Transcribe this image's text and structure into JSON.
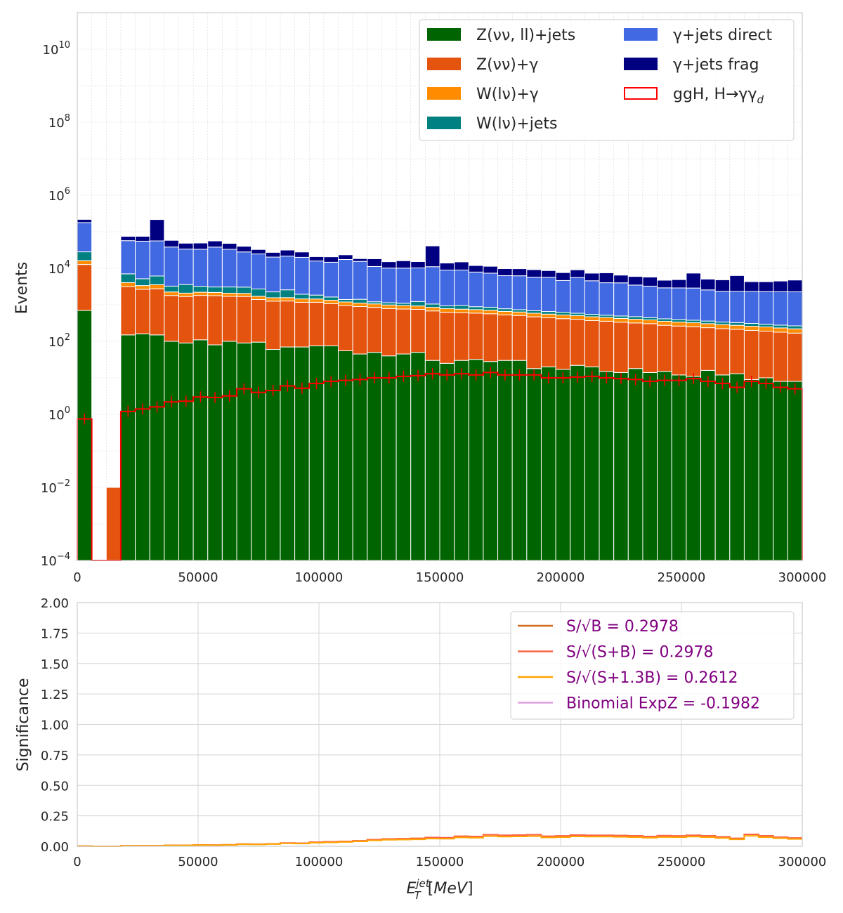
{
  "chart_data": [
    {
      "type": "bar",
      "stacked": true,
      "xlabel": "E_T^jet [MeV]",
      "ylabel": "Events",
      "yscale": "log",
      "xlim": [
        0,
        300000
      ],
      "ylim": [
        0.0001,
        100000000000
      ],
      "grid": true,
      "legend": "top-right",
      "xticks": [
        "0",
        "50000",
        "100000",
        "150000",
        "200000",
        "250000",
        "300000"
      ],
      "yticks": [
        {
          "v": 0.0001,
          "base": "10",
          "exp": "−4"
        },
        {
          "v": 0.01,
          "base": "10",
          "exp": "−2"
        },
        {
          "v": 1,
          "base": "10",
          "exp": "0"
        },
        {
          "v": 100,
          "base": "10",
          "exp": "2"
        },
        {
          "v": 10000,
          "base": "10",
          "exp": "4"
        },
        {
          "v": 1000000,
          "base": "10",
          "exp": "6"
        },
        {
          "v": 100000000,
          "base": "10",
          "exp": "8"
        },
        {
          "v": 10000000000,
          "base": "10",
          "exp": "10"
        }
      ],
      "bin_width": 6000,
      "x": [
        3000,
        9000,
        15000,
        21000,
        27000,
        33000,
        39000,
        45000,
        51000,
        57000,
        63000,
        69000,
        75000,
        81000,
        87000,
        93000,
        99000,
        105000,
        111000,
        117000,
        123000,
        129000,
        135000,
        141000,
        147000,
        153000,
        159000,
        165000,
        171000,
        177000,
        183000,
        189000,
        195000,
        201000,
        207000,
        213000,
        219000,
        225000,
        231000,
        237000,
        243000,
        249000,
        255000,
        261000,
        267000,
        273000,
        279000,
        285000,
        291000,
        297000
      ],
      "series": [
        {
          "name": "Z(νν, ll)+jets",
          "color": "#006400",
          "values": [
            700,
            0,
            0,
            150,
            160,
            150,
            100,
            90,
            110,
            80,
            100,
            90,
            95,
            60,
            70,
            70,
            75,
            75,
            55,
            45,
            50,
            40,
            45,
            50,
            30,
            25,
            30,
            32,
            28,
            30,
            30,
            18,
            20,
            17,
            22,
            20,
            15,
            14,
            18,
            14,
            15,
            12,
            11,
            16,
            12,
            13,
            9,
            10,
            8,
            8
          ]
        },
        {
          "name": "Z(νν)+γ",
          "color": "#e4540f",
          "values": [
            12000,
            0,
            0.01,
            3000,
            2500,
            2600,
            1700,
            1600,
            1700,
            1700,
            1600,
            1600,
            1300,
            1200,
            1200,
            1100,
            1100,
            1000,
            900,
            850,
            800,
            750,
            720,
            700,
            650,
            600,
            580,
            560,
            540,
            500,
            480,
            450,
            420,
            400,
            380,
            350,
            340,
            320,
            300,
            290,
            260,
            250,
            240,
            220,
            210,
            200,
            190,
            180,
            170,
            160
          ]
        },
        {
          "name": "W(lν)+γ",
          "color": "#ff8c00",
          "values": [
            3500,
            0,
            0,
            900,
            700,
            800,
            450,
            400,
            400,
            400,
            380,
            360,
            320,
            300,
            300,
            280,
            270,
            260,
            240,
            220,
            210,
            200,
            190,
            180,
            170,
            160,
            150,
            145,
            140,
            130,
            125,
            120,
            115,
            110,
            105,
            100,
            95,
            90,
            85,
            82,
            78,
            75,
            72,
            68,
            65,
            62,
            60,
            58,
            55,
            52
          ]
        },
        {
          "name": "W(lν)+jets",
          "color": "#008080",
          "values": [
            12000,
            0,
            0,
            3000,
            1800,
            2600,
            1000,
            1500,
            1000,
            900,
            1000,
            1000,
            1000,
            700,
            1000,
            500,
            400,
            300,
            200,
            300,
            150,
            150,
            150,
            300,
            200,
            150,
            200,
            150,
            150,
            120,
            100,
            100,
            100,
            100,
            80,
            80,
            70,
            70,
            70,
            60,
            60,
            60,
            55,
            55,
            50,
            50,
            50,
            45,
            45,
            45
          ]
        },
        {
          "name": "γ+jets direct",
          "color": "#4169e1",
          "values": [
            150000,
            0,
            0,
            50000,
            50000,
            50000,
            35000,
            30000,
            30000,
            35000,
            30000,
            25000,
            22000,
            18000,
            19000,
            18000,
            14000,
            13000,
            16000,
            14000,
            10000,
            9000,
            9000,
            9000,
            10000,
            8000,
            8000,
            7000,
            6500,
            5500,
            5500,
            5000,
            5000,
            4000,
            5000,
            4000,
            3500,
            3500,
            3000,
            2800,
            2500,
            2500,
            2500,
            2200,
            2000,
            2000,
            2000,
            2000,
            2000,
            2000
          ]
        },
        {
          "name": "γ+jets frag",
          "color": "#000080",
          "values": [
            40000,
            0,
            0,
            18000,
            20000,
            160000,
            20000,
            15000,
            16000,
            18000,
            15000,
            12000,
            8000,
            7000,
            10000,
            8000,
            5000,
            6000,
            6000,
            3000,
            7000,
            5000,
            6000,
            5000,
            30000,
            5000,
            6000,
            4000,
            4000,
            3500,
            3500,
            3500,
            3000,
            3000,
            3500,
            2800,
            3500,
            2500,
            2500,
            2500,
            1800,
            2000,
            4500,
            2500,
            2500,
            4000,
            2000,
            2000,
            2200,
            2500
          ]
        }
      ],
      "signal": {
        "name": "ggH, H→γγ_d",
        "color": "#ff0000",
        "values": [
          0.75,
          0,
          0,
          1.2,
          1.4,
          1.6,
          2.2,
          2.3,
          3.0,
          2.9,
          3.2,
          5.0,
          4.0,
          4.5,
          6.0,
          5.2,
          7.0,
          8.0,
          8.5,
          9.0,
          10.0,
          10.0,
          11.0,
          11.5,
          13.0,
          12.0,
          13.0,
          12.0,
          14.0,
          12.0,
          12.0,
          12.0,
          10.0,
          10.0,
          10.5,
          11.0,
          10.0,
          9.5,
          9.0,
          8.0,
          8.5,
          8.5,
          9.5,
          8.0,
          7.0,
          5.5,
          8.0,
          7.0,
          5.5,
          5.0
        ]
      }
    },
    {
      "type": "line",
      "step": true,
      "xlabel": "E_T^jet [MeV]",
      "ylabel": "Significance",
      "xlim": [
        0,
        300000
      ],
      "ylim": [
        0,
        2.0
      ],
      "grid": true,
      "legend": "top-right",
      "xticks": [
        "0",
        "50000",
        "100000",
        "150000",
        "200000",
        "250000",
        "300000"
      ],
      "yticks": [
        "0.00",
        "0.25",
        "0.50",
        "0.75",
        "1.00",
        "1.25",
        "1.50",
        "1.75",
        "2.00"
      ],
      "bin_edges_step": 6000,
      "series": [
        {
          "name": "S/√B = 0.2978",
          "color": "#d2691e",
          "values": [
            0.002,
            0,
            0,
            0.004,
            0.005,
            0.005,
            0.008,
            0.009,
            0.011,
            0.01,
            0.012,
            0.018,
            0.017,
            0.02,
            0.027,
            0.025,
            0.033,
            0.037,
            0.04,
            0.045,
            0.055,
            0.06,
            0.062,
            0.065,
            0.072,
            0.07,
            0.082,
            0.08,
            0.095,
            0.09,
            0.092,
            0.095,
            0.082,
            0.085,
            0.092,
            0.09,
            0.09,
            0.088,
            0.086,
            0.08,
            0.087,
            0.085,
            0.09,
            0.086,
            0.078,
            0.065,
            0.098,
            0.086,
            0.075,
            0.068
          ]
        },
        {
          "name": "S/√(S+B) = 0.2978",
          "color": "#ff6347",
          "values": [
            0.002,
            0,
            0,
            0.004,
            0.005,
            0.005,
            0.008,
            0.009,
            0.011,
            0.01,
            0.012,
            0.018,
            0.017,
            0.02,
            0.027,
            0.025,
            0.033,
            0.037,
            0.04,
            0.045,
            0.055,
            0.06,
            0.062,
            0.065,
            0.072,
            0.07,
            0.082,
            0.08,
            0.095,
            0.09,
            0.092,
            0.095,
            0.082,
            0.085,
            0.092,
            0.09,
            0.09,
            0.088,
            0.086,
            0.08,
            0.087,
            0.085,
            0.09,
            0.086,
            0.078,
            0.065,
            0.098,
            0.086,
            0.075,
            0.068
          ]
        },
        {
          "name": "S/√(S+1.3B) = 0.2612",
          "color": "#ffa500",
          "values": [
            0.002,
            0,
            0,
            0.004,
            0.004,
            0.004,
            0.007,
            0.008,
            0.01,
            0.009,
            0.011,
            0.016,
            0.015,
            0.018,
            0.024,
            0.022,
            0.029,
            0.032,
            0.035,
            0.04,
            0.048,
            0.053,
            0.055,
            0.057,
            0.063,
            0.062,
            0.072,
            0.07,
            0.083,
            0.079,
            0.081,
            0.083,
            0.072,
            0.075,
            0.081,
            0.079,
            0.079,
            0.077,
            0.075,
            0.07,
            0.076,
            0.075,
            0.079,
            0.075,
            0.068,
            0.057,
            0.086,
            0.075,
            0.066,
            0.06
          ]
        },
        {
          "name": "Binomial ExpZ = -0.1982",
          "color": "#dda0dd",
          "values": []
        }
      ]
    }
  ]
}
